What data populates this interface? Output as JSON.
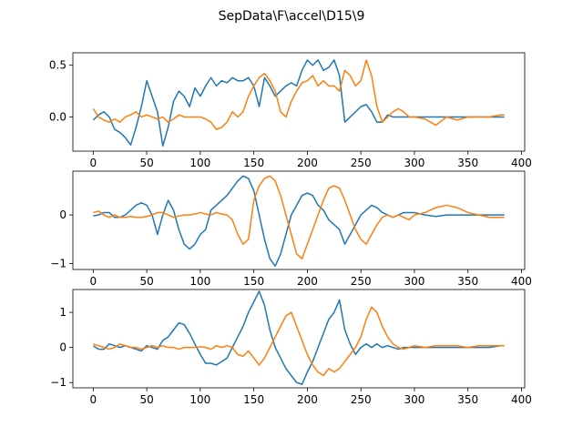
{
  "title": "SepData\\F\\accel\\D15\\9",
  "colors": {
    "series1": "#1f77b4",
    "series2": "#ff7f0e",
    "axis": "#000000"
  },
  "chart_data": [
    {
      "type": "line",
      "xlim": [
        -19,
        403
      ],
      "ylim": [
        -0.33,
        0.62
      ],
      "xticks": [
        0,
        50,
        100,
        150,
        200,
        250,
        300,
        350,
        400
      ],
      "yticks": [
        -0.5,
        0.0,
        0.5
      ],
      "ytick_labels": [
        "−0.5",
        "0.0",
        "0.5"
      ],
      "series": [
        {
          "x": [
            0,
            5,
            10,
            15,
            20,
            25,
            30,
            35,
            40,
            45,
            50,
            55,
            60,
            65,
            70,
            75,
            80,
            85,
            90,
            95,
            100,
            105,
            110,
            115,
            120,
            125,
            130,
            135,
            140,
            145,
            150,
            155,
            160,
            165,
            170,
            175,
            180,
            185,
            190,
            195,
            200,
            205,
            210,
            215,
            220,
            225,
            230,
            235,
            240,
            245,
            250,
            255,
            260,
            265,
            270,
            275,
            280,
            285,
            290,
            295,
            300,
            310,
            320,
            330,
            340,
            350,
            360,
            370,
            380,
            384
          ],
          "values": [
            -0.03,
            0.02,
            0.05,
            0.0,
            -0.12,
            -0.15,
            -0.2,
            -0.27,
            -0.1,
            0.1,
            0.35,
            0.2,
            0.05,
            -0.28,
            -0.1,
            0.15,
            0.25,
            0.2,
            0.1,
            0.28,
            0.2,
            0.3,
            0.38,
            0.3,
            0.35,
            0.33,
            0.38,
            0.35,
            0.35,
            0.38,
            0.3,
            0.1,
            0.38,
            0.3,
            0.2,
            0.25,
            0.3,
            0.33,
            0.3,
            0.45,
            0.55,
            0.5,
            0.55,
            0.45,
            0.48,
            0.55,
            0.4,
            -0.05,
            0.0,
            0.05,
            0.1,
            0.12,
            0.05,
            -0.05,
            -0.05,
            0.02,
            0.0,
            0.0,
            0.0,
            0.0,
            0.0,
            0.0,
            0.0,
            0.0,
            0.0,
            0.0,
            0.0,
            0.0,
            0.0,
            0.0
          ]
        },
        {
          "x": [
            0,
            5,
            10,
            15,
            20,
            25,
            30,
            35,
            40,
            45,
            50,
            55,
            60,
            65,
            70,
            75,
            80,
            85,
            90,
            95,
            100,
            105,
            110,
            115,
            120,
            125,
            130,
            135,
            140,
            145,
            150,
            155,
            160,
            165,
            170,
            175,
            180,
            185,
            190,
            195,
            200,
            205,
            210,
            215,
            220,
            225,
            230,
            235,
            240,
            245,
            250,
            255,
            260,
            265,
            270,
            275,
            280,
            285,
            290,
            295,
            300,
            310,
            320,
            330,
            340,
            350,
            360,
            370,
            380,
            384
          ],
          "values": [
            0.08,
            0.0,
            -0.03,
            -0.05,
            -0.02,
            -0.05,
            0.0,
            0.02,
            0.05,
            0.0,
            0.02,
            0.0,
            -0.02,
            0.0,
            -0.05,
            -0.02,
            0.02,
            0.0,
            0.0,
            0.0,
            0.0,
            -0.02,
            -0.05,
            -0.12,
            -0.1,
            -0.05,
            0.05,
            0.0,
            0.05,
            0.2,
            0.3,
            0.38,
            0.42,
            0.35,
            0.25,
            0.05,
            0.0,
            0.15,
            0.25,
            0.33,
            0.35,
            0.4,
            0.3,
            0.35,
            0.3,
            0.3,
            0.25,
            0.45,
            0.4,
            0.3,
            0.35,
            0.55,
            0.4,
            0.1,
            -0.05,
            0.0,
            0.05,
            0.08,
            0.05,
            0.0,
            0.0,
            -0.02,
            -0.08,
            0.0,
            -0.03,
            0.0,
            0.0,
            0.0,
            0.02,
            0.02
          ]
        }
      ]
    },
    {
      "type": "line",
      "xlim": [
        -19,
        403
      ],
      "ylim": [
        -1.12,
        0.9
      ],
      "xticks": [
        0,
        50,
        100,
        150,
        200,
        250,
        300,
        350,
        400
      ],
      "yticks": [
        -1,
        0
      ],
      "ytick_labels": [
        "−1",
        "0"
      ],
      "series": [
        {
          "x": [
            0,
            5,
            10,
            15,
            20,
            25,
            30,
            35,
            40,
            45,
            50,
            55,
            60,
            65,
            70,
            75,
            80,
            85,
            90,
            95,
            100,
            105,
            110,
            115,
            120,
            125,
            130,
            135,
            140,
            145,
            150,
            155,
            160,
            165,
            170,
            175,
            180,
            185,
            190,
            195,
            200,
            205,
            210,
            215,
            220,
            225,
            230,
            235,
            240,
            245,
            250,
            255,
            260,
            265,
            270,
            275,
            280,
            285,
            290,
            295,
            300,
            310,
            320,
            330,
            340,
            350,
            360,
            370,
            380,
            384
          ],
          "values": [
            -0.02,
            0.0,
            0.05,
            0.05,
            -0.05,
            -0.05,
            0.0,
            0.1,
            0.2,
            0.25,
            0.2,
            0.0,
            -0.4,
            0.0,
            0.3,
            0.1,
            -0.3,
            -0.6,
            -0.7,
            -0.6,
            -0.4,
            -0.3,
            0.1,
            0.2,
            0.3,
            0.4,
            0.55,
            0.7,
            0.8,
            0.75,
            0.5,
            0.0,
            -0.5,
            -0.9,
            -1.05,
            -0.8,
            -0.4,
            0.0,
            0.2,
            0.4,
            0.45,
            0.4,
            0.2,
            0.1,
            -0.1,
            -0.2,
            -0.3,
            -0.6,
            -0.4,
            -0.2,
            0.0,
            0.1,
            0.2,
            0.15,
            0.05,
            0.0,
            -0.05,
            0.0,
            0.05,
            0.05,
            0.05,
            0.0,
            -0.03,
            0.0,
            0.0,
            0.0,
            0.0,
            0.0,
            0.0,
            0.0
          ]
        },
        {
          "x": [
            0,
            5,
            10,
            15,
            20,
            25,
            30,
            35,
            40,
            45,
            50,
            55,
            60,
            65,
            70,
            75,
            80,
            85,
            90,
            95,
            100,
            105,
            110,
            115,
            120,
            125,
            130,
            135,
            140,
            145,
            150,
            155,
            160,
            165,
            170,
            175,
            180,
            185,
            190,
            195,
            200,
            205,
            210,
            215,
            220,
            225,
            230,
            235,
            240,
            245,
            250,
            255,
            260,
            265,
            270,
            275,
            280,
            285,
            290,
            295,
            300,
            310,
            320,
            330,
            340,
            350,
            360,
            370,
            380,
            384
          ],
          "values": [
            0.05,
            0.08,
            0.0,
            -0.05,
            0.0,
            -0.05,
            -0.05,
            -0.03,
            -0.05,
            -0.05,
            -0.03,
            0.0,
            0.05,
            0.05,
            0.0,
            -0.05,
            -0.02,
            0.0,
            0.0,
            0.02,
            0.05,
            0.02,
            0.0,
            0.05,
            0.02,
            0.0,
            -0.1,
            -0.4,
            -0.6,
            -0.5,
            0.3,
            0.6,
            0.75,
            0.8,
            0.7,
            0.4,
            0.0,
            -0.4,
            -0.8,
            -0.9,
            -0.6,
            -0.3,
            0.0,
            0.3,
            0.55,
            0.6,
            0.55,
            0.3,
            0.0,
            -0.3,
            -0.5,
            -0.6,
            -0.4,
            -0.2,
            -0.05,
            0.0,
            -0.05,
            0.0,
            -0.05,
            -0.1,
            0.0,
            0.05,
            0.15,
            0.2,
            0.15,
            0.05,
            0.0,
            -0.05,
            -0.05,
            -0.05
          ]
        }
      ]
    },
    {
      "type": "line",
      "xlim": [
        -19,
        403
      ],
      "ylim": [
        -1.15,
        1.65
      ],
      "xticks": [
        0,
        50,
        100,
        150,
        200,
        250,
        300,
        350,
        400
      ],
      "yticks": [
        -1,
        0,
        1
      ],
      "ytick_labels": [
        "−1",
        "0",
        "1"
      ],
      "series": [
        {
          "x": [
            0,
            5,
            10,
            15,
            20,
            25,
            30,
            35,
            40,
            45,
            50,
            55,
            60,
            65,
            70,
            75,
            80,
            85,
            90,
            95,
            100,
            105,
            110,
            115,
            120,
            125,
            130,
            135,
            140,
            145,
            150,
            155,
            160,
            165,
            170,
            175,
            180,
            185,
            190,
            195,
            200,
            205,
            210,
            215,
            220,
            225,
            230,
            235,
            240,
            245,
            250,
            255,
            260,
            265,
            270,
            275,
            280,
            285,
            290,
            295,
            300,
            310,
            320,
            330,
            340,
            350,
            360,
            370,
            380,
            384
          ],
          "values": [
            0.05,
            -0.05,
            -0.05,
            0.1,
            0.05,
            0.0,
            0.05,
            0.0,
            -0.05,
            -0.1,
            0.05,
            0.0,
            -0.05,
            0.2,
            0.3,
            0.5,
            0.7,
            0.65,
            0.4,
            0.1,
            -0.2,
            -0.45,
            -0.45,
            -0.5,
            -0.4,
            -0.3,
            0.0,
            0.3,
            0.6,
            1.0,
            1.3,
            1.6,
            1.2,
            0.5,
            0.0,
            -0.3,
            -0.6,
            -0.8,
            -1.0,
            -1.05,
            -0.7,
            -0.4,
            0.0,
            0.4,
            0.8,
            1.0,
            1.35,
            0.5,
            0.1,
            -0.2,
            0.0,
            0.1,
            0.0,
            0.1,
            0.0,
            0.05,
            0.0,
            -0.05,
            0.0,
            0.0,
            0.0,
            0.0,
            0.0,
            0.0,
            0.0,
            0.0,
            0.0,
            0.0,
            0.05,
            0.05
          ]
        },
        {
          "x": [
            0,
            5,
            10,
            15,
            20,
            25,
            30,
            35,
            40,
            45,
            50,
            55,
            60,
            65,
            70,
            75,
            80,
            85,
            90,
            95,
            100,
            105,
            110,
            115,
            120,
            125,
            130,
            135,
            140,
            145,
            150,
            155,
            160,
            165,
            170,
            175,
            180,
            185,
            190,
            195,
            200,
            205,
            210,
            215,
            220,
            225,
            230,
            235,
            240,
            245,
            250,
            255,
            260,
            265,
            270,
            275,
            280,
            285,
            290,
            295,
            300,
            310,
            320,
            330,
            340,
            350,
            360,
            370,
            380,
            384
          ],
          "values": [
            0.1,
            0.05,
            0.0,
            -0.05,
            0.0,
            0.1,
            0.05,
            0.0,
            0.0,
            -0.05,
            0.0,
            0.05,
            0.0,
            0.05,
            0.0,
            0.0,
            -0.05,
            0.0,
            0.0,
            0.0,
            0.02,
            0.0,
            -0.05,
            0.05,
            0.0,
            0.05,
            0.0,
            -0.2,
            -0.25,
            -0.1,
            -0.3,
            -0.5,
            -0.3,
            0.0,
            0.3,
            0.6,
            0.9,
            1.0,
            0.6,
            0.2,
            -0.2,
            -0.5,
            -0.7,
            -0.8,
            -0.6,
            -0.7,
            -0.6,
            -0.4,
            -0.2,
            0.0,
            0.3,
            0.8,
            1.15,
            1.0,
            0.6,
            0.3,
            0.1,
            0.0,
            -0.05,
            0.0,
            0.05,
            0.0,
            0.05,
            0.05,
            0.05,
            0.0,
            0.05,
            0.05,
            0.05,
            0.05
          ]
        }
      ]
    }
  ]
}
